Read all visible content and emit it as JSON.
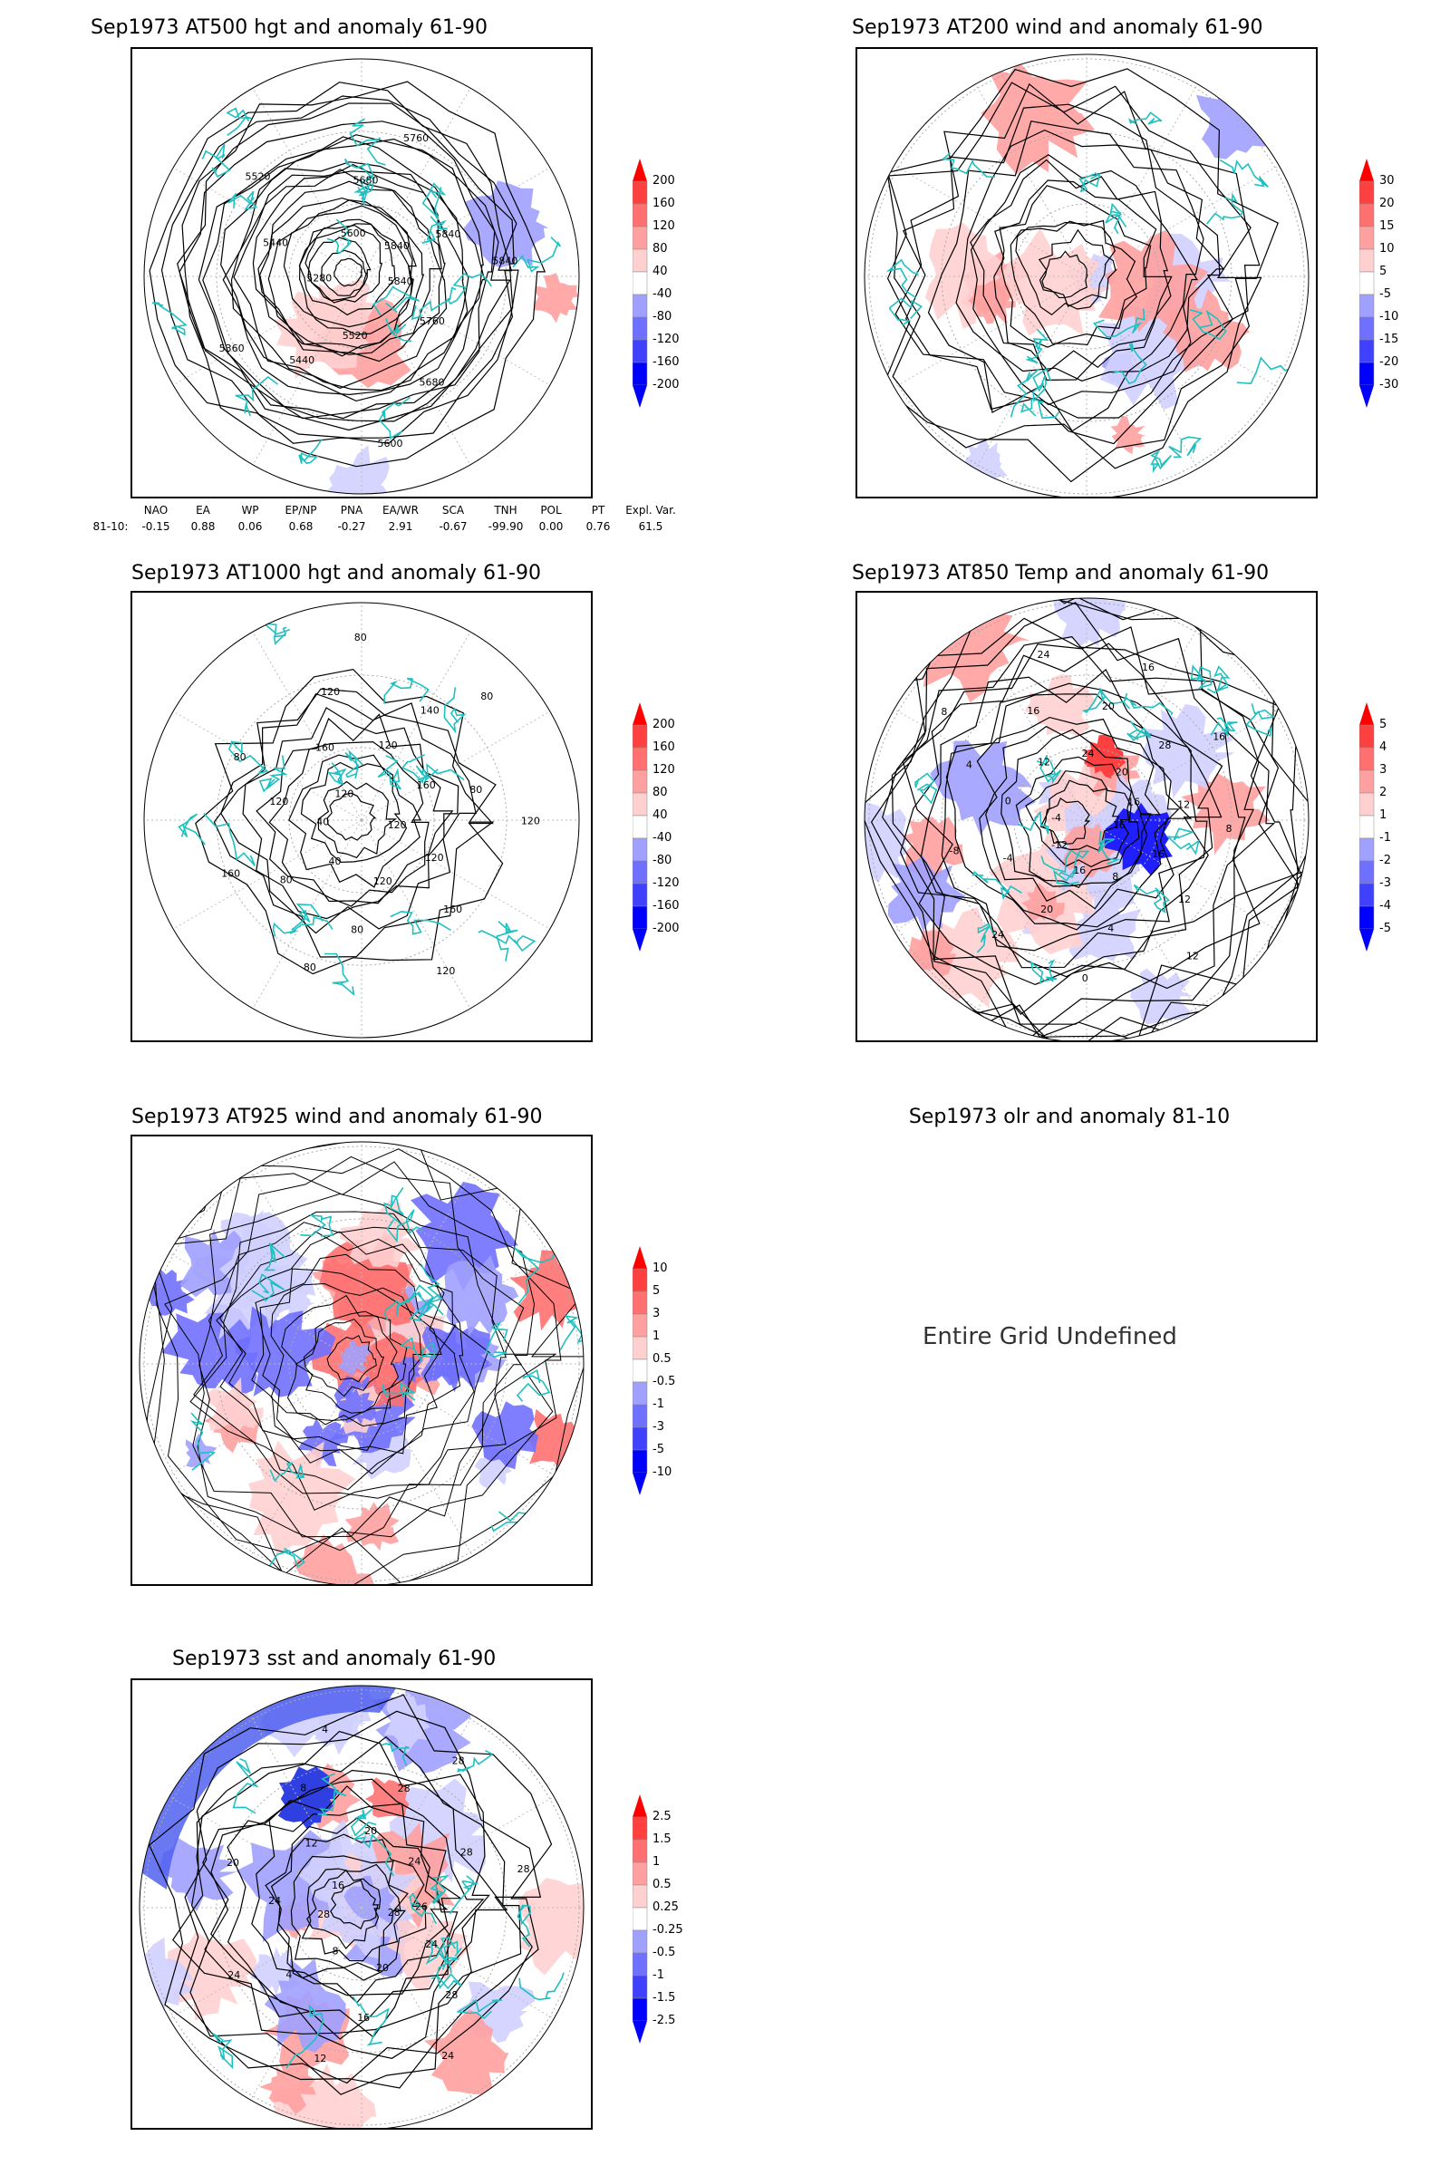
{
  "panels": [
    {
      "title": "Sep1973 AT500 hgt and anomaly 61-90",
      "contour_labels": [
        "5840",
        "5760",
        "5680",
        "5600",
        "5520",
        "5440",
        "5360",
        "5280",
        "5440",
        "5520",
        "5600",
        "5680",
        "5760",
        "5840",
        "5840",
        "5840"
      ],
      "colorbar": [
        "200",
        "160",
        "120",
        "80",
        "40",
        "-40",
        "-80",
        "-120",
        "-160",
        "-200"
      ]
    },
    {
      "title": "Sep1973 AT200 wind and anomaly 61-90",
      "colorbar": [
        "30",
        "20",
        "15",
        "10",
        "5",
        "-5",
        "-10",
        "-15",
        "-20",
        "-30"
      ]
    },
    {
      "title": "Sep1973 AT1000 hgt and anomaly 61-90",
      "contour_labels": [
        "120",
        "120",
        "160",
        "120",
        "120",
        "80",
        "80",
        "40",
        "80",
        "160",
        "40",
        "120",
        "80",
        "120",
        "160",
        "120",
        "80",
        "120",
        "140",
        "80",
        "160",
        "80",
        "120"
      ],
      "colorbar": [
        "200",
        "160",
        "120",
        "80",
        "40",
        "-40",
        "-80",
        "-120",
        "-160",
        "-200"
      ]
    },
    {
      "title": "Sep1973 AT850 Temp and anomaly 61-90",
      "contour_labels": [
        "16",
        "16",
        "12",
        "12",
        "8",
        "4",
        "0",
        "16",
        "20",
        "24",
        "-12",
        "-4",
        "-8",
        "-4",
        "0",
        "4",
        "8",
        "12",
        "16",
        "24",
        "24",
        "20",
        "16",
        "20",
        "28",
        "16",
        "16",
        "12",
        "8"
      ],
      "colorbar": [
        "5",
        "4",
        "3",
        "2",
        "1",
        "-1",
        "-2",
        "-3",
        "-4",
        "-5"
      ]
    },
    {
      "title": "Sep1973 AT925 wind and anomaly 61-90",
      "colorbar": [
        "10",
        "5",
        "3",
        "1",
        "0.5",
        "-0.5",
        "-1",
        "-3",
        "-5",
        "-10"
      ]
    },
    {
      "title": "Sep1973 olr and anomaly 81-10",
      "message": "Entire Grid Undefined"
    },
    {
      "title": "Sep1973 sst and anomaly 61-90",
      "contour_labels": [
        "28",
        "24",
        "28",
        "24",
        "20",
        "16",
        "12",
        "8",
        "4",
        "24",
        "28",
        "24",
        "20",
        "16",
        "12",
        "8",
        "4",
        "20",
        "28",
        "28",
        "24",
        "28",
        "28",
        "26"
      ],
      "colorbar": [
        "2.5",
        "1.5",
        "1",
        "0.5",
        "0.25",
        "-0.25",
        "-0.5",
        "-1",
        "-1.5",
        "-2.5"
      ]
    }
  ],
  "teleconnections": {
    "row_label": "81-10:",
    "names": [
      "NAO",
      "EA",
      "WP",
      "EP/NP",
      "PNA",
      "EA/WR",
      "SCA",
      "TNH",
      "POL",
      "PT",
      "Expl. Var."
    ],
    "values": [
      "-0.15",
      "0.88",
      "0.06",
      "0.68",
      "-0.27",
      "2.91",
      "-0.67",
      "-99.90",
      "0.00",
      "0.76",
      "61.5"
    ]
  },
  "colors": {
    "positive": "#ff2020",
    "negative": "#2020ff",
    "coast": "#20c0c0",
    "contour": "#000000"
  }
}
